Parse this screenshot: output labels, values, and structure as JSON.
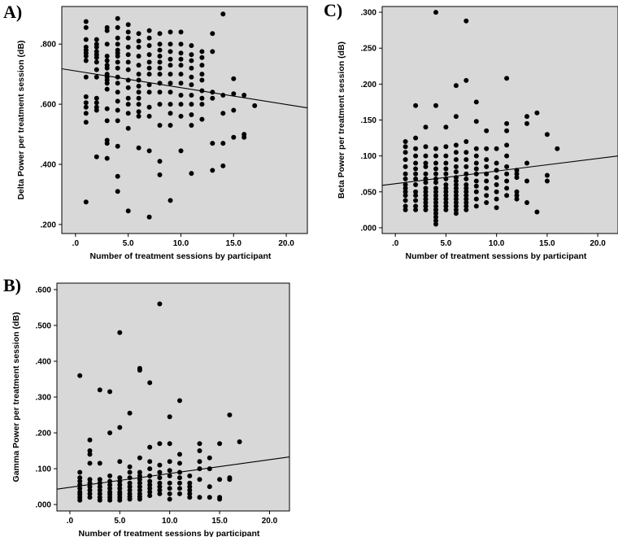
{
  "chart_data": [
    {
      "panel": "A)",
      "type": "scatter",
      "title": "",
      "xlabel": "Number of treatment sessions by participant",
      "ylabel": "Delta Power per treatment session (dB)",
      "xlim": [
        -1.3,
        22.0
      ],
      "ylim": [
        0.17,
        0.925
      ],
      "xticks": [
        0,
        5,
        10,
        15,
        20
      ],
      "xtick_labels": [
        ".0",
        "5.0",
        "10.0",
        "15.0",
        "20.0"
      ],
      "yticks": [
        0.2,
        0.4,
        0.6,
        0.8
      ],
      "ytick_labels": [
        ".200",
        ".400",
        ".600",
        ".800"
      ],
      "fit_line": [
        [
          -1.3,
          0.718
        ],
        [
          22.0,
          0.588
        ]
      ],
      "background": "#d8d8d8",
      "x": [
        1,
        1,
        1,
        1,
        1,
        1,
        1,
        1,
        1,
        1,
        1,
        1,
        1,
        1,
        1,
        2,
        2,
        2,
        2,
        2,
        2,
        2,
        2,
        2,
        2,
        2,
        2,
        2,
        2,
        3,
        3,
        3,
        3,
        3,
        3,
        3,
        3,
        3,
        3,
        3,
        3,
        3,
        3,
        3,
        3,
        3,
        4,
        4,
        4,
        4,
        4,
        4,
        4,
        4,
        4,
        4,
        4,
        4,
        4,
        4,
        4,
        4,
        4,
        4,
        5,
        5,
        5,
        5,
        5,
        5,
        5,
        5,
        5,
        5,
        5,
        5,
        5,
        5,
        6,
        6,
        6,
        6,
        6,
        6,
        6,
        6,
        6,
        6,
        6,
        6,
        6,
        6,
        7,
        7,
        7,
        7,
        7,
        7,
        7,
        7,
        7,
        7,
        7,
        7,
        7,
        8,
        8,
        8,
        8,
        8,
        8,
        8,
        8,
        8,
        8,
        8,
        8,
        8,
        9,
        9,
        9,
        9,
        9,
        9,
        9,
        9,
        9,
        9,
        9,
        9,
        10,
        10,
        10,
        10,
        10,
        10,
        10,
        10,
        10,
        10,
        10,
        11,
        11,
        11,
        11,
        11,
        11,
        11,
        11,
        11,
        11,
        11,
        12,
        12,
        12,
        12,
        12,
        12,
        12,
        12,
        12,
        13,
        13,
        13,
        13,
        13,
        13,
        14,
        14,
        14,
        14,
        14,
        15,
        15,
        15,
        15,
        16,
        16,
        16,
        17
      ],
      "y": [
        0.875,
        0.855,
        0.815,
        0.79,
        0.78,
        0.77,
        0.76,
        0.745,
        0.69,
        0.625,
        0.605,
        0.59,
        0.57,
        0.54,
        0.275,
        0.815,
        0.8,
        0.79,
        0.775,
        0.765,
        0.755,
        0.74,
        0.715,
        0.69,
        0.62,
        0.605,
        0.59,
        0.58,
        0.425,
        0.855,
        0.845,
        0.8,
        0.76,
        0.745,
        0.73,
        0.72,
        0.7,
        0.69,
        0.68,
        0.67,
        0.65,
        0.585,
        0.545,
        0.48,
        0.47,
        0.42,
        0.885,
        0.855,
        0.82,
        0.8,
        0.78,
        0.77,
        0.76,
        0.74,
        0.72,
        0.69,
        0.67,
        0.64,
        0.61,
        0.58,
        0.545,
        0.46,
        0.36,
        0.31,
        0.865,
        0.84,
        0.82,
        0.79,
        0.765,
        0.74,
        0.715,
        0.68,
        0.655,
        0.62,
        0.6,
        0.57,
        0.52,
        0.245,
        0.835,
        0.81,
        0.79,
        0.76,
        0.73,
        0.7,
        0.68,
        0.66,
        0.64,
        0.62,
        0.6,
        0.575,
        0.56,
        0.455,
        0.845,
        0.82,
        0.795,
        0.765,
        0.74,
        0.72,
        0.7,
        0.665,
        0.64,
        0.59,
        0.56,
        0.445,
        0.225,
        0.835,
        0.8,
        0.78,
        0.76,
        0.74,
        0.72,
        0.7,
        0.67,
        0.64,
        0.6,
        0.53,
        0.41,
        0.365,
        0.84,
        0.8,
        0.775,
        0.75,
        0.73,
        0.7,
        0.67,
        0.64,
        0.6,
        0.57,
        0.53,
        0.28,
        0.84,
        0.8,
        0.77,
        0.75,
        0.73,
        0.7,
        0.67,
        0.63,
        0.6,
        0.56,
        0.445,
        0.795,
        0.765,
        0.745,
        0.72,
        0.69,
        0.665,
        0.63,
        0.6,
        0.565,
        0.53,
        0.37,
        0.775,
        0.755,
        0.73,
        0.7,
        0.68,
        0.645,
        0.62,
        0.6,
        0.55,
        0.835,
        0.775,
        0.64,
        0.62,
        0.47,
        0.38,
        0.9,
        0.63,
        0.57,
        0.47,
        0.395,
        0.685,
        0.635,
        0.58,
        0.49,
        0.63,
        0.5,
        0.49,
        0.595
      ]
    },
    {
      "panel": "C)",
      "type": "scatter",
      "title": "",
      "xlabel": "Number of treatment sessions by participant",
      "ylabel": "Beta Power per treatment session (dB)",
      "xlim": [
        -1.3,
        22.0
      ],
      "ylim": [
        -0.008,
        0.308
      ],
      "xticks": [
        0,
        5,
        10,
        15,
        20
      ],
      "xtick_labels": [
        ".0",
        "5.0",
        "10.0",
        "15.0",
        "20.0"
      ],
      "yticks": [
        0.0,
        0.05,
        0.1,
        0.15,
        0.2,
        0.25,
        0.3
      ],
      "ytick_labels": [
        ".000",
        ".050",
        ".100",
        ".150",
        ".200",
        ".250",
        ".300"
      ],
      "fit_line": [
        [
          -1.3,
          0.059
        ],
        [
          22.0,
          0.1
        ]
      ],
      "background": "#d8d8d8",
      "x": [
        1,
        1,
        1,
        1,
        1,
        1,
        1,
        1,
        1,
        1,
        1,
        1,
        1,
        1,
        2,
        2,
        2,
        2,
        2,
        2,
        2,
        2,
        2,
        2,
        2,
        2,
        2,
        2,
        3,
        3,
        3,
        3,
        3,
        3,
        3,
        3,
        3,
        3,
        3,
        3,
        3,
        3,
        3,
        4,
        4,
        4,
        4,
        4,
        4,
        4,
        4,
        4,
        4,
        4,
        4,
        4,
        4,
        4,
        4,
        4,
        4,
        4,
        4,
        4,
        5,
        5,
        5,
        5,
        5,
        5,
        5,
        5,
        5,
        5,
        5,
        5,
        5,
        5,
        5,
        6,
        6,
        6,
        6,
        6,
        6,
        6,
        6,
        6,
        6,
        6,
        6,
        6,
        6,
        6,
        6,
        6,
        6,
        7,
        7,
        7,
        7,
        7,
        7,
        7,
        7,
        7,
        7,
        7,
        7,
        7,
        7,
        7,
        7,
        8,
        8,
        8,
        8,
        8,
        8,
        8,
        8,
        8,
        8,
        8,
        8,
        9,
        9,
        9,
        9,
        9,
        9,
        9,
        9,
        9,
        10,
        10,
        10,
        10,
        10,
        10,
        10,
        10,
        11,
        11,
        11,
        11,
        11,
        11,
        11,
        11,
        11,
        11,
        12,
        12,
        12,
        12,
        12,
        12,
        13,
        13,
        13,
        13,
        13,
        14,
        14,
        15,
        15,
        15,
        16
      ],
      "y": [
        0.12,
        0.113,
        0.105,
        0.095,
        0.085,
        0.075,
        0.068,
        0.06,
        0.055,
        0.05,
        0.045,
        0.038,
        0.03,
        0.025,
        0.17,
        0.125,
        0.11,
        0.1,
        0.09,
        0.082,
        0.075,
        0.068,
        0.06,
        0.05,
        0.045,
        0.038,
        0.03,
        0.025,
        0.14,
        0.113,
        0.1,
        0.09,
        0.085,
        0.075,
        0.068,
        0.063,
        0.055,
        0.05,
        0.045,
        0.04,
        0.035,
        0.03,
        0.025,
        0.3,
        0.17,
        0.11,
        0.1,
        0.09,
        0.082,
        0.075,
        0.068,
        0.063,
        0.055,
        0.05,
        0.045,
        0.04,
        0.035,
        0.03,
        0.025,
        0.02,
        0.015,
        0.01,
        0.005,
        0.025,
        0.14,
        0.113,
        0.1,
        0.09,
        0.082,
        0.075,
        0.068,
        0.06,
        0.055,
        0.05,
        0.045,
        0.04,
        0.035,
        0.03,
        0.025,
        0.198,
        0.155,
        0.115,
        0.105,
        0.095,
        0.085,
        0.078,
        0.07,
        0.065,
        0.06,
        0.055,
        0.05,
        0.045,
        0.04,
        0.035,
        0.03,
        0.025,
        0.02,
        0.288,
        0.205,
        0.12,
        0.105,
        0.095,
        0.085,
        0.075,
        0.068,
        0.06,
        0.055,
        0.05,
        0.045,
        0.04,
        0.035,
        0.03,
        0.025,
        0.175,
        0.148,
        0.11,
        0.1,
        0.09,
        0.082,
        0.075,
        0.065,
        0.058,
        0.05,
        0.04,
        0.03,
        0.135,
        0.11,
        0.095,
        0.085,
        0.075,
        0.065,
        0.055,
        0.045,
        0.035,
        0.11,
        0.09,
        0.08,
        0.07,
        0.06,
        0.05,
        0.04,
        0.028,
        0.208,
        0.145,
        0.135,
        0.115,
        0.1,
        0.085,
        0.075,
        0.065,
        0.055,
        0.045,
        0.08,
        0.075,
        0.07,
        0.05,
        0.045,
        0.04,
        0.155,
        0.145,
        0.09,
        0.065,
        0.035,
        0.16,
        0.022,
        0.13,
        0.073,
        0.065,
        0.11
      ]
    },
    {
      "panel": "B)",
      "type": "scatter",
      "title": "",
      "xlabel": "Number of treatment sessions by participant",
      "ylabel": "Gamma Power per treatment session (dB)",
      "xlim": [
        -1.3,
        22.0
      ],
      "ylim": [
        -0.018,
        0.618
      ],
      "xticks": [
        0,
        5,
        10,
        15,
        20
      ],
      "xtick_labels": [
        ".0",
        "5.0",
        "10.0",
        "15.0",
        "20.0"
      ],
      "yticks": [
        0.0,
        0.1,
        0.2,
        0.3,
        0.4,
        0.5,
        0.6
      ],
      "ytick_labels": [
        ".000",
        ".100",
        ".200",
        ".300",
        ".400",
        ".500",
        ".600"
      ],
      "fit_line": [
        [
          -1.3,
          0.043
        ],
        [
          22.0,
          0.133
        ]
      ],
      "background": "#d8d8d8",
      "x": [
        1,
        1,
        1,
        1,
        1,
        1,
        1,
        1,
        1,
        1,
        2,
        2,
        2,
        2,
        2,
        2,
        2,
        2,
        2,
        2,
        3,
        3,
        3,
        3,
        3,
        3,
        3,
        3,
        3,
        4,
        4,
        4,
        4,
        4,
        4,
        4,
        4,
        4,
        4,
        5,
        5,
        5,
        5,
        5,
        5,
        5,
        5,
        5,
        5,
        5,
        6,
        6,
        6,
        6,
        6,
        6,
        6,
        6,
        6,
        6,
        7,
        7,
        7,
        7,
        7,
        7,
        7,
        7,
        7,
        7,
        7,
        7,
        8,
        8,
        8,
        8,
        8,
        8,
        8,
        8,
        8,
        8,
        9,
        9,
        9,
        9,
        9,
        9,
        9,
        9,
        9,
        10,
        10,
        10,
        10,
        10,
        10,
        10,
        10,
        10,
        11,
        11,
        11,
        11,
        11,
        11,
        11,
        11,
        12,
        12,
        12,
        12,
        12,
        12,
        13,
        13,
        13,
        13,
        13,
        13,
        14,
        14,
        14,
        14,
        15,
        15,
        15,
        15,
        16,
        16,
        16,
        17
      ],
      "y": [
        0.36,
        0.09,
        0.075,
        0.065,
        0.055,
        0.045,
        0.035,
        0.028,
        0.02,
        0.012,
        0.18,
        0.15,
        0.14,
        0.115,
        0.07,
        0.06,
        0.05,
        0.04,
        0.03,
        0.02,
        0.32,
        0.115,
        0.07,
        0.06,
        0.05,
        0.04,
        0.03,
        0.02,
        0.012,
        0.315,
        0.2,
        0.08,
        0.065,
        0.055,
        0.045,
        0.035,
        0.028,
        0.02,
        0.012,
        0.48,
        0.215,
        0.12,
        0.075,
        0.065,
        0.055,
        0.045,
        0.035,
        0.028,
        0.02,
        0.012,
        0.255,
        0.105,
        0.09,
        0.075,
        0.06,
        0.05,
        0.04,
        0.03,
        0.022,
        0.015,
        0.38,
        0.375,
        0.13,
        0.09,
        0.08,
        0.07,
        0.06,
        0.05,
        0.04,
        0.03,
        0.022,
        0.015,
        0.34,
        0.16,
        0.12,
        0.1,
        0.08,
        0.065,
        0.055,
        0.045,
        0.035,
        0.025,
        0.56,
        0.17,
        0.11,
        0.09,
        0.075,
        0.06,
        0.05,
        0.04,
        0.03,
        0.245,
        0.17,
        0.12,
        0.095,
        0.08,
        0.06,
        0.045,
        0.03,
        0.015,
        0.29,
        0.14,
        0.115,
        0.09,
        0.075,
        0.06,
        0.045,
        0.03,
        0.08,
        0.06,
        0.05,
        0.04,
        0.03,
        0.02,
        0.17,
        0.15,
        0.12,
        0.1,
        0.07,
        0.02,
        0.13,
        0.1,
        0.05,
        0.02,
        0.17,
        0.07,
        0.02,
        0.015,
        0.25,
        0.075,
        0.07,
        0.175
      ]
    }
  ]
}
